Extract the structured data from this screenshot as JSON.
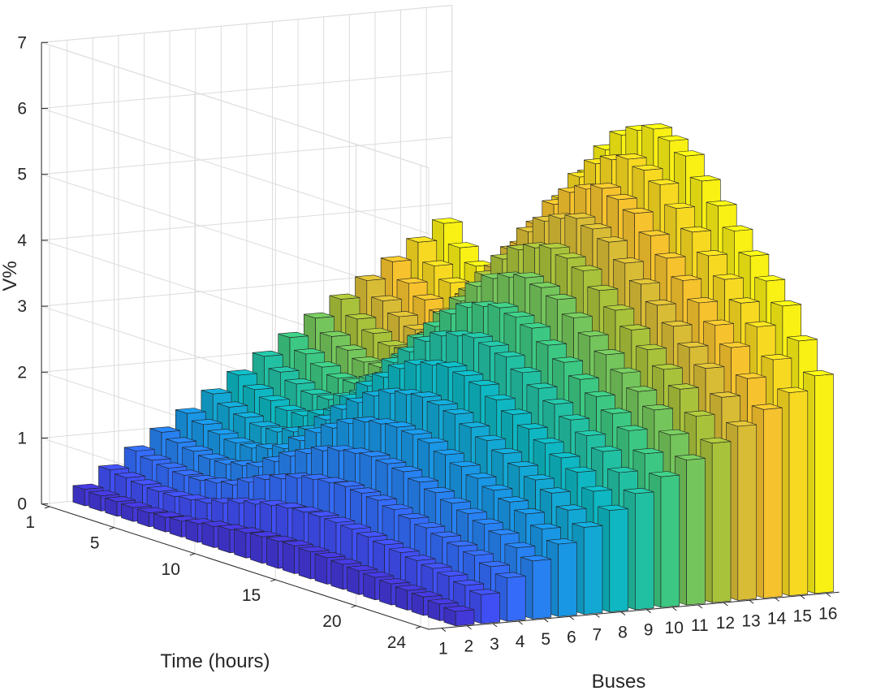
{
  "chart_data": {
    "type": "bar3d",
    "xlabel": "Buses",
    "ylabel": "Time (hours)",
    "zlabel": "V%",
    "x_ticks": [
      "1",
      "2",
      "3",
      "4",
      "5",
      "6",
      "7",
      "8",
      "9",
      "10",
      "11",
      "12",
      "13",
      "14",
      "15",
      "16"
    ],
    "y_ticks": [
      "1",
      "5",
      "10",
      "15",
      "20",
      "24"
    ],
    "z_ticks": [
      "0",
      "1",
      "2",
      "3",
      "4",
      "5",
      "6",
      "7"
    ],
    "zlim": [
      0,
      7
    ],
    "colormap": "parula",
    "buses": [
      1,
      2,
      3,
      4,
      5,
      6,
      7,
      8,
      9,
      10,
      11,
      12,
      13,
      14,
      15,
      16
    ],
    "hours": [
      1,
      2,
      3,
      4,
      5,
      6,
      7,
      8,
      9,
      10,
      11,
      12,
      13,
      14,
      15,
      16,
      17,
      18,
      19,
      20,
      21,
      22,
      23,
      24
    ],
    "values": [
      [
        0,
        0.25,
        0.51,
        0.76,
        1.01,
        1.26,
        1.52,
        1.77,
        2.02,
        2.27,
        2.53,
        2.78,
        3.03,
        3.28,
        3.54,
        3.79
      ],
      [
        0,
        0.23,
        0.47,
        0.7,
        0.93,
        1.17,
        1.4,
        1.63,
        1.86,
        2.1,
        2.33,
        2.56,
        2.8,
        3.03,
        3.26,
        3.5
      ],
      [
        0,
        0.22,
        0.44,
        0.66,
        0.88,
        1.1,
        1.32,
        1.54,
        1.76,
        1.98,
        2.2,
        2.42,
        2.64,
        2.86,
        3.08,
        3.3
      ],
      [
        0,
        0.21,
        0.42,
        0.63,
        0.84,
        1.05,
        1.26,
        1.47,
        1.68,
        1.89,
        2.1,
        2.31,
        2.52,
        2.73,
        2.94,
        3.15
      ],
      [
        0,
        0.21,
        0.42,
        0.63,
        0.84,
        1.05,
        1.26,
        1.47,
        1.68,
        1.89,
        2.1,
        2.31,
        2.52,
        2.73,
        2.94,
        3.15
      ],
      [
        0,
        0.22,
        0.45,
        0.67,
        0.9,
        1.12,
        1.34,
        1.57,
        1.79,
        2.02,
        2.24,
        2.46,
        2.69,
        2.91,
        3.14,
        3.36
      ],
      [
        0,
        0.24,
        0.48,
        0.72,
        0.96,
        1.2,
        1.44,
        1.68,
        1.92,
        2.16,
        2.4,
        2.64,
        2.88,
        3.12,
        3.36,
        3.6
      ],
      [
        0,
        0.28,
        0.56,
        0.84,
        1.12,
        1.4,
        1.68,
        1.96,
        2.24,
        2.52,
        2.8,
        3.08,
        3.36,
        3.64,
        3.92,
        4.2
      ],
      [
        0,
        0.32,
        0.64,
        0.96,
        1.28,
        1.6,
        1.92,
        2.24,
        2.56,
        2.88,
        3.2,
        3.52,
        3.84,
        4.16,
        4.48,
        4.8
      ],
      [
        0,
        0.35,
        0.7,
        1.05,
        1.4,
        1.75,
        2.1,
        2.45,
        2.8,
        3.15,
        3.5,
        3.85,
        4.2,
        4.55,
        4.9,
        5.25
      ],
      [
        0,
        0.38,
        0.76,
        1.14,
        1.52,
        1.9,
        2.28,
        2.66,
        3.04,
        3.42,
        3.8,
        4.18,
        4.56,
        4.94,
        5.32,
        5.7
      ],
      [
        0,
        0.4,
        0.8,
        1.2,
        1.6,
        2.0,
        2.4,
        2.8,
        3.2,
        3.6,
        4.0,
        4.4,
        4.8,
        5.2,
        5.6,
        6.0
      ],
      [
        0,
        0.41,
        0.82,
        1.23,
        1.64,
        2.05,
        2.46,
        2.87,
        3.28,
        3.69,
        4.1,
        4.51,
        4.92,
        5.33,
        5.74,
        6.15
      ],
      [
        0,
        0.42,
        0.83,
        1.25,
        1.67,
        2.08,
        2.5,
        2.92,
        3.33,
        3.75,
        4.17,
        4.58,
        5.0,
        5.42,
        5.83,
        6.25
      ],
      [
        0,
        0.41,
        0.82,
        1.23,
        1.64,
        2.05,
        2.46,
        2.87,
        3.28,
        3.69,
        4.1,
        4.51,
        4.92,
        5.33,
        5.74,
        6.15
      ],
      [
        0,
        0.4,
        0.8,
        1.2,
        1.6,
        2.0,
        2.4,
        2.8,
        3.2,
        3.6,
        4.0,
        4.4,
        4.8,
        5.2,
        5.6,
        6.0
      ],
      [
        0,
        0.38,
        0.76,
        1.14,
        1.52,
        1.9,
        2.28,
        2.66,
        3.04,
        3.42,
        3.8,
        4.18,
        4.56,
        4.94,
        5.32,
        5.7
      ],
      [
        0,
        0.36,
        0.72,
        1.08,
        1.44,
        1.8,
        2.16,
        2.52,
        2.88,
        3.24,
        3.6,
        3.96,
        4.32,
        4.68,
        5.04,
        5.4
      ],
      [
        0,
        0.34,
        0.68,
        1.02,
        1.36,
        1.7,
        2.04,
        2.38,
        2.72,
        3.06,
        3.4,
        3.74,
        4.08,
        4.42,
        4.76,
        5.1
      ],
      [
        0,
        0.32,
        0.64,
        0.96,
        1.28,
        1.6,
        1.92,
        2.24,
        2.56,
        2.88,
        3.2,
        3.52,
        3.84,
        4.16,
        4.48,
        4.8
      ],
      [
        0,
        0.3,
        0.6,
        0.9,
        1.2,
        1.5,
        1.8,
        2.1,
        2.4,
        2.7,
        3.0,
        3.3,
        3.6,
        3.9,
        4.2,
        4.5
      ],
      [
        0,
        0.28,
        0.56,
        0.84,
        1.12,
        1.4,
        1.68,
        1.96,
        2.24,
        2.52,
        2.8,
        3.08,
        3.36,
        3.64,
        3.92,
        4.2
      ],
      [
        0,
        0.25,
        0.5,
        0.75,
        1.0,
        1.25,
        1.5,
        1.75,
        2.0,
        2.25,
        2.5,
        2.75,
        3.0,
        3.25,
        3.5,
        3.75
      ],
      [
        0,
        0.22,
        0.44,
        0.66,
        0.88,
        1.1,
        1.32,
        1.54,
        1.76,
        1.98,
        2.2,
        2.42,
        2.64,
        2.86,
        3.08,
        3.3
      ]
    ],
    "grid": true
  }
}
